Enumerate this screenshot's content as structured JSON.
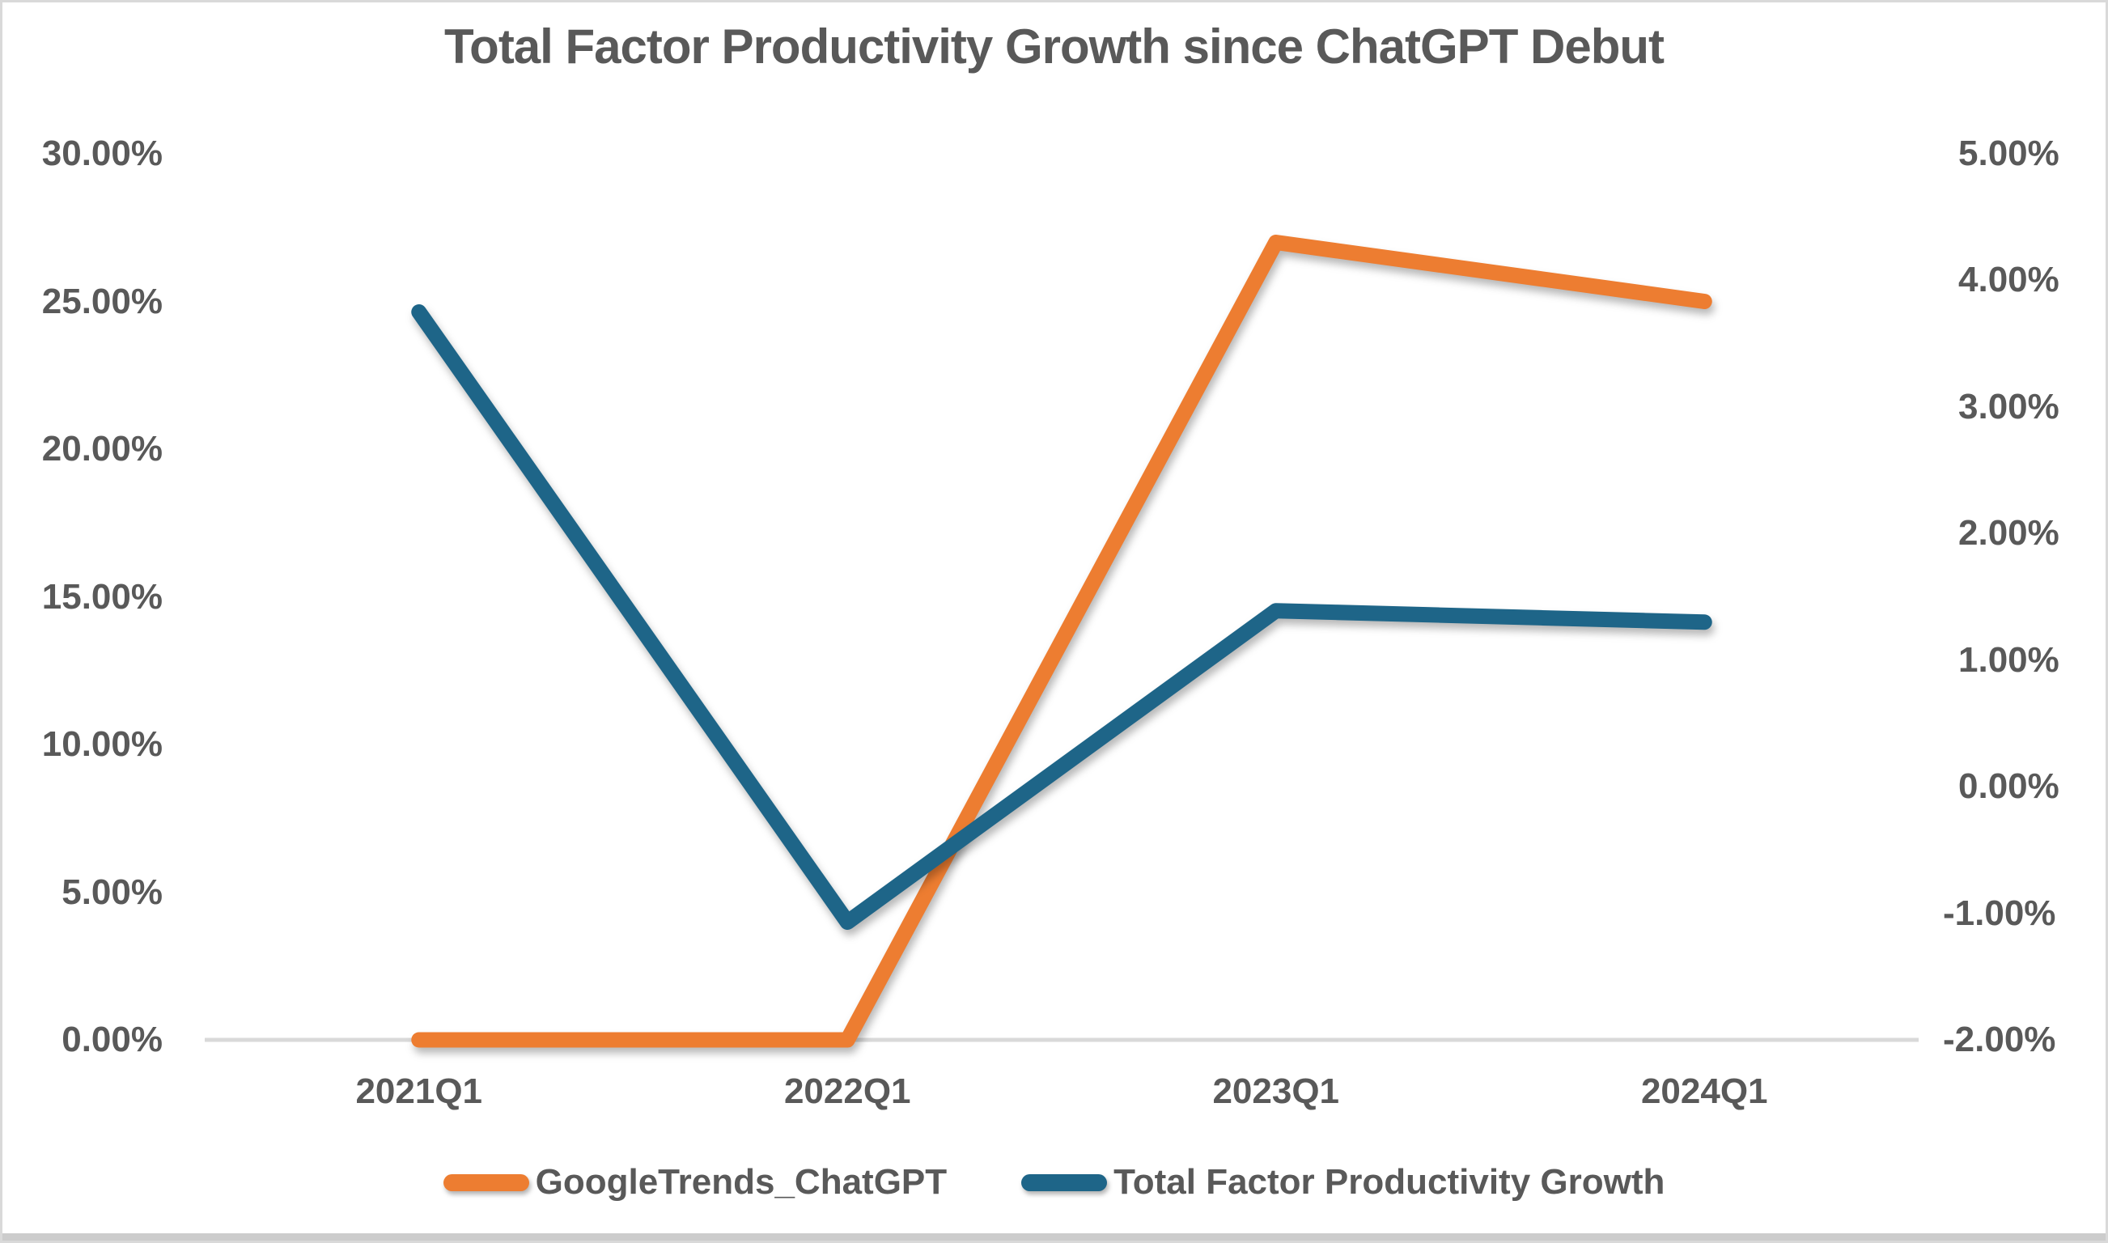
{
  "page": {
    "background": "#FFFFFF",
    "frame_border_color": "#D9D9D9",
    "bottom_edge_color": "#CCCCCC",
    "text_color": "#595959"
  },
  "chart_data": {
    "type": "line",
    "title": "Total Factor Productivity Growth since ChatGPT Debut",
    "categories": [
      "2021Q1",
      "2022Q1",
      "2023Q1",
      "2024Q1"
    ],
    "series": [
      {
        "name": "GoogleTrends_ChatGPT",
        "axis": "left",
        "color": "#ED7D31",
        "values": [
          0.0,
          0.0,
          27.0,
          25.0
        ]
      },
      {
        "name": "Total Factor Productivity Growth",
        "axis": "right",
        "color": "#1E6588",
        "values": [
          3.75,
          -1.07,
          1.39,
          1.3
        ]
      }
    ],
    "left_axis": {
      "min": 0,
      "max": 30,
      "unit": "%",
      "ticks": [
        "30.00%",
        "25.00%",
        "20.00%",
        "15.00%",
        "10.00%",
        "5.00%",
        "0.00%"
      ]
    },
    "right_axis": {
      "min": -2,
      "max": 5,
      "unit": "%",
      "ticks": [
        "5.00%",
        "4.00%",
        "3.00%",
        "2.00%",
        "1.00%",
        "0.00%",
        "-1.00%",
        "-2.00%"
      ]
    },
    "legend_position": "bottom",
    "grid": "off",
    "axis_line_color": "#D9D9D9",
    "text_color": "#595959"
  }
}
